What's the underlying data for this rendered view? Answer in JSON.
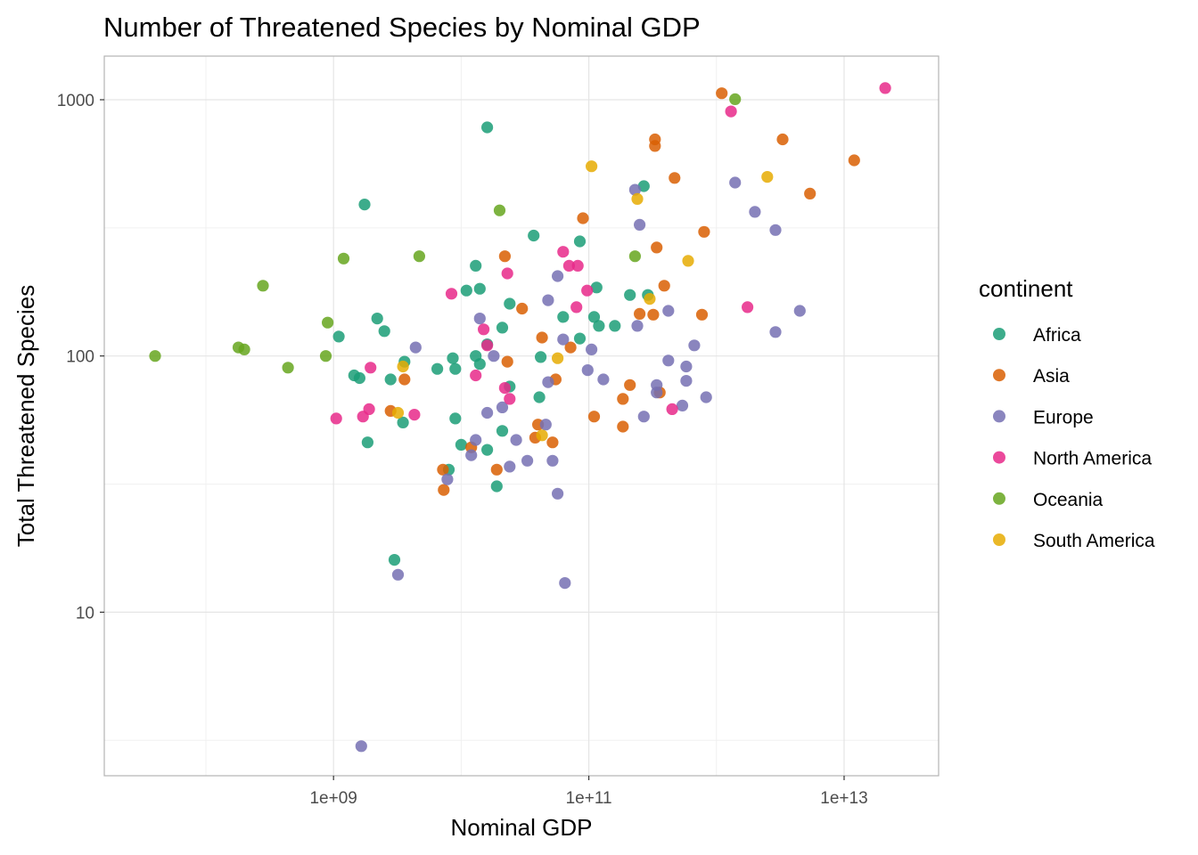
{
  "chart_data": {
    "type": "scatter",
    "title": "Number of Threatened Species by Nominal GDP",
    "xlabel": "Nominal GDP",
    "ylabel": "Total Threatened Species",
    "xscale": "log10",
    "yscale": "log10",
    "xlim": [
      16000000.0,
      55000000000000.0
    ],
    "ylim": [
      2.3,
      1480
    ],
    "x_ticks": [
      {
        "value": 1000000000.0,
        "label": "1e+09"
      },
      {
        "value": 100000000000.0,
        "label": "1e+11"
      },
      {
        "value": 10000000000000.0,
        "label": "1e+13"
      }
    ],
    "x_minor_ticks": [
      100000000.0,
      10000000000.0,
      1000000000000.0
    ],
    "y_ticks": [
      {
        "value": 10,
        "label": "10"
      },
      {
        "value": 100,
        "label": "100"
      },
      {
        "value": 1000,
        "label": "1000"
      }
    ],
    "y_minor_ticks": [
      3.16,
      31.6,
      316
    ],
    "grid": true,
    "legend": {
      "title": "continent",
      "position": "right"
    },
    "colors": {
      "Africa": "#1b9e77",
      "Asia": "#d95f02",
      "Europe": "#7570b3",
      "North America": "#e7298a",
      "Oceania": "#66a61e",
      "South America": "#e6ab02"
    },
    "series": [
      {
        "name": "Africa",
        "points": [
          [
            16000000000.0,
            780
          ],
          [
            1750000000.0,
            390
          ],
          [
            37000000000.0,
            295
          ],
          [
            85000000000.0,
            280
          ],
          [
            270000000000.0,
            460
          ],
          [
            13000000000.0,
            225
          ],
          [
            14000000000.0,
            183
          ],
          [
            11000000000.0,
            180
          ],
          [
            115000000000.0,
            185
          ],
          [
            210000000000.0,
            173
          ],
          [
            290000000000.0,
            173
          ],
          [
            24000000000.0,
            160
          ],
          [
            110000000000.0,
            142
          ],
          [
            63000000000.0,
            142
          ],
          [
            2200000000.0,
            140
          ],
          [
            120000000000.0,
            131
          ],
          [
            160000000000.0,
            131
          ],
          [
            2500000000.0,
            125
          ],
          [
            21000000000.0,
            129
          ],
          [
            1100000000.0,
            119
          ],
          [
            85000000000.0,
            117
          ],
          [
            16000000000.0,
            111
          ],
          [
            8600000000.0,
            98
          ],
          [
            13000000000.0,
            100
          ],
          [
            42000000000.0,
            99
          ],
          [
            3600000000.0,
            95
          ],
          [
            6500000000.0,
            89
          ],
          [
            9000000000.0,
            89
          ],
          [
            14000000000.0,
            93
          ],
          [
            2800000000.0,
            81
          ],
          [
            1600000000.0,
            82
          ],
          [
            1450000000.0,
            84
          ],
          [
            24000000000.0,
            76
          ],
          [
            41000000000.0,
            69
          ],
          [
            9000000000.0,
            57
          ],
          [
            3500000000.0,
            55
          ],
          [
            21000000000.0,
            51
          ],
          [
            1850000000.0,
            46
          ],
          [
            10000000000.0,
            45
          ],
          [
            16000000000.0,
            43
          ],
          [
            8000000000.0,
            36
          ],
          [
            19000000000.0,
            31
          ],
          [
            3000000000.0,
            16
          ]
        ]
      },
      {
        "name": "Asia",
        "points": [
          [
            1100000000000.0,
            1060
          ],
          [
            3300000000000.0,
            700
          ],
          [
            330000000000.0,
            700
          ],
          [
            330000000000.0,
            660
          ],
          [
            12000000000000.0,
            580
          ],
          [
            470000000000.0,
            495
          ],
          [
            5400000000000.0,
            430
          ],
          [
            90000000000.0,
            345
          ],
          [
            800000000000.0,
            305
          ],
          [
            340000000000.0,
            265
          ],
          [
            22000000000.0,
            245
          ],
          [
            390000000000.0,
            188
          ],
          [
            30000000000.0,
            153
          ],
          [
            770000000000.0,
            145
          ],
          [
            250000000000.0,
            146
          ],
          [
            320000000000.0,
            145
          ],
          [
            43000000000.0,
            118
          ],
          [
            72000000000.0,
            108
          ],
          [
            23000000000.0,
            95
          ],
          [
            3600000000.0,
            81
          ],
          [
            55000000000.0,
            81
          ],
          [
            210000000000.0,
            77
          ],
          [
            360000000000.0,
            72
          ],
          [
            185000000000.0,
            68
          ],
          [
            2800000000.0,
            61
          ],
          [
            110000000000.0,
            58
          ],
          [
            40000000000.0,
            54
          ],
          [
            185000000000.0,
            53
          ],
          [
            38000000000.0,
            48
          ],
          [
            52000000000.0,
            46
          ],
          [
            12000000000.0,
            44
          ],
          [
            7200000000.0,
            36
          ],
          [
            19000000000.0,
            36
          ],
          [
            7300000000.0,
            30
          ]
        ]
      },
      {
        "name": "Europe",
        "points": [
          [
            1400000000000.0,
            475
          ],
          [
            230000000000.0,
            445
          ],
          [
            2000000000000.0,
            365
          ],
          [
            250000000000.0,
            325
          ],
          [
            2900000000000.0,
            310
          ],
          [
            57000000000.0,
            205
          ],
          [
            48000000000.0,
            165
          ],
          [
            420000000000.0,
            150
          ],
          [
            4500000000000.0,
            150
          ],
          [
            14000000000.0,
            140
          ],
          [
            240000000000.0,
            131
          ],
          [
            2900000000000.0,
            124
          ],
          [
            63000000000.0,
            116
          ],
          [
            670000000000.0,
            110
          ],
          [
            4400000000.0,
            108
          ],
          [
            105000000000.0,
            106
          ],
          [
            18000000000.0,
            100
          ],
          [
            420000000000.0,
            96
          ],
          [
            98000000000.0,
            88
          ],
          [
            580000000000.0,
            91
          ],
          [
            130000000000.0,
            81
          ],
          [
            48000000000.0,
            79
          ],
          [
            580000000000.0,
            80
          ],
          [
            340000000000.0,
            77
          ],
          [
            340000000000.0,
            72
          ],
          [
            830000000000.0,
            69
          ],
          [
            540000000000.0,
            64
          ],
          [
            21000000000.0,
            63
          ],
          [
            16000000000.0,
            60
          ],
          [
            270000000000.0,
            58
          ],
          [
            46000000000.0,
            54
          ],
          [
            27000000000.0,
            47
          ],
          [
            13000000000.0,
            47
          ],
          [
            12000000000.0,
            41
          ],
          [
            33000000000.0,
            39
          ],
          [
            52000000000.0,
            39
          ],
          [
            24000000000.0,
            37
          ],
          [
            7800000000.0,
            33
          ],
          [
            57000000000.0,
            29
          ],
          [
            3200000000.0,
            14
          ],
          [
            65000000000.0,
            13
          ],
          [
            1650000000.0,
            3
          ]
        ]
      },
      {
        "name": "North America",
        "points": [
          [
            21000000000000.0,
            1110
          ],
          [
            1300000000000.0,
            900
          ],
          [
            63000000000.0,
            255
          ],
          [
            70000000000.0,
            225
          ],
          [
            82000000000.0,
            225
          ],
          [
            23000000000.0,
            210
          ],
          [
            8400000000.0,
            175
          ],
          [
            97000000000.0,
            180
          ],
          [
            80000000000.0,
            155
          ],
          [
            1750000000000.0,
            155
          ],
          [
            15000000000.0,
            127
          ],
          [
            16000000000.0,
            110
          ],
          [
            13000000000.0,
            84
          ],
          [
            22000000000.0,
            75
          ],
          [
            24000000000.0,
            68
          ],
          [
            1950000000.0,
            90
          ],
          [
            450000000000.0,
            62
          ],
          [
            1900000000.0,
            62
          ],
          [
            1700000000.0,
            58
          ],
          [
            1050000000.0,
            57
          ],
          [
            4300000000.0,
            59
          ]
        ]
      },
      {
        "name": "Oceania",
        "points": [
          [
            1400000000000.0,
            1005
          ],
          [
            20000000000.0,
            370
          ],
          [
            1200000000.0,
            240
          ],
          [
            4700000000.0,
            245
          ],
          [
            230000000000.0,
            245
          ],
          [
            280000000.0,
            188
          ],
          [
            900000000.0,
            135
          ],
          [
            180000000.0,
            108
          ],
          [
            200000000.0,
            106
          ],
          [
            870000000.0,
            100
          ],
          [
            40000000.0,
            100
          ],
          [
            440000000.0,
            90
          ]
        ]
      },
      {
        "name": "South America",
        "points": [
          [
            105000000000.0,
            550
          ],
          [
            2500000000000.0,
            500
          ],
          [
            240000000000.0,
            410
          ],
          [
            600000000000.0,
            235
          ],
          [
            300000000000.0,
            167
          ],
          [
            57000000000.0,
            98
          ],
          [
            3500000000.0,
            91
          ],
          [
            3200000000.0,
            60
          ],
          [
            43000000000.0,
            49
          ]
        ]
      }
    ]
  }
}
